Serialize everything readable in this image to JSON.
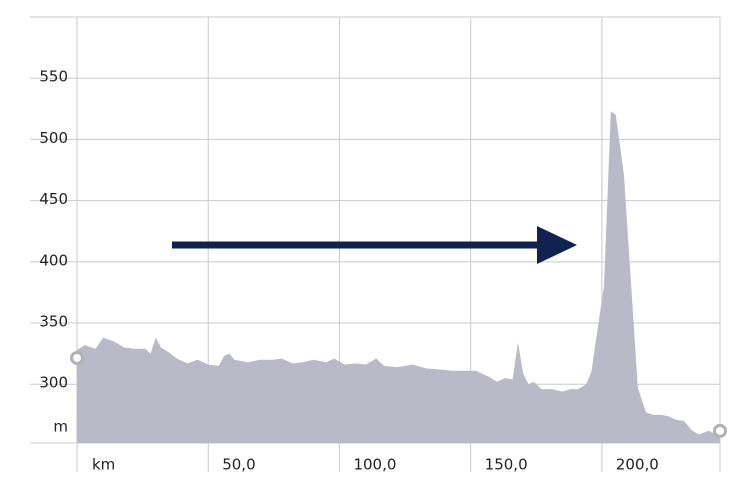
{
  "chart_data": {
    "type": "area",
    "x_label": "km",
    "y_label": "m",
    "color": "#b9b9c8",
    "x": [
      0,
      3,
      7,
      10,
      14,
      18,
      22,
      26,
      28,
      30,
      32,
      35,
      38,
      42,
      46,
      50,
      54,
      56,
      58,
      60,
      65,
      70,
      75,
      78,
      82,
      86,
      90,
      95,
      98,
      102,
      106,
      110,
      114,
      117,
      122,
      128,
      133,
      138,
      143,
      148,
      152,
      157,
      160,
      163,
      166,
      168,
      170,
      172,
      174,
      177,
      181,
      185,
      188,
      191,
      194,
      196,
      198,
      200.8,
      203.4,
      205.3,
      208.4,
      211.5,
      213.7,
      216.8,
      219.5,
      222.5,
      225.2,
      228.2,
      231.3,
      234.4,
      237,
      240.8,
      245
    ],
    "values": [
      328,
      332,
      329,
      338,
      335,
      330,
      329,
      329,
      325,
      338,
      330,
      326,
      321,
      317,
      320,
      316,
      315,
      323,
      325,
      320,
      318,
      320,
      320,
      321,
      317,
      318,
      320,
      318,
      321,
      316,
      317,
      316,
      321,
      315,
      314,
      316,
      313,
      312,
      311,
      311,
      311,
      306,
      302,
      305,
      304,
      334,
      309,
      300,
      302,
      296,
      296,
      294,
      296,
      296,
      300,
      310,
      340,
      380,
      523,
      520,
      471,
      369,
      297,
      277,
      275,
      275,
      274,
      271,
      270,
      262,
      259,
      262,
      257
    ],
    "xlim": [
      0,
      245
    ],
    "ylim": [
      252,
      600
    ],
    "xticks": [
      {
        "value": 50,
        "label": "50,0"
      },
      {
        "value": 100,
        "label": "100,0"
      },
      {
        "value": 150,
        "label": "150,0"
      },
      {
        "value": 200,
        "label": "200,0"
      }
    ],
    "yticks": [
      300,
      350,
      400,
      450,
      500,
      550
    ],
    "grid": true
  }
}
